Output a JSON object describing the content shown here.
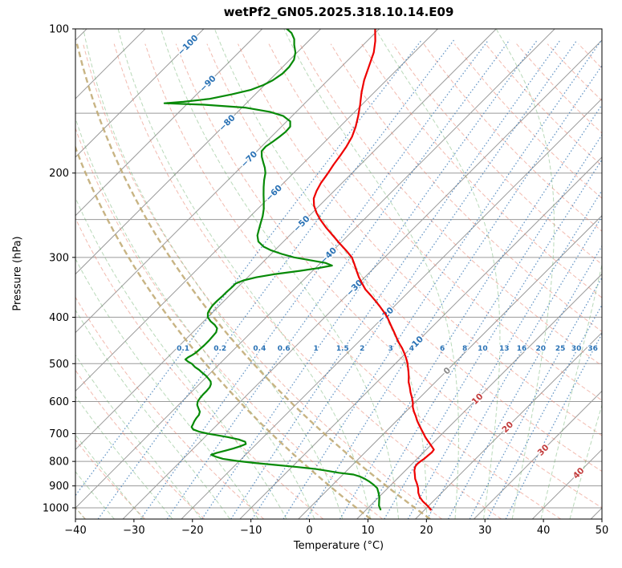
{
  "title": "wetPf2_GN05.2025.318.10.14.E09",
  "chart_data": {
    "type": "line",
    "chart_kind": "skew-t-log-p-sounding",
    "xlabel": "Temperature (°C)",
    "ylabel": "Pressure (hPa)",
    "xlim": [
      -40,
      50
    ],
    "pressure_range": [
      100,
      1000
    ],
    "x_ticks": [
      -40,
      -30,
      -20,
      -10,
      0,
      10,
      20,
      30,
      40,
      50
    ],
    "y_ticks": [
      100,
      200,
      300,
      400,
      500,
      600,
      700,
      800,
      900,
      1000
    ],
    "pressure_gridlines": [
      100,
      150,
      200,
      250,
      300,
      400,
      500,
      600,
      700,
      800,
      900,
      1000
    ],
    "isotherms": {
      "min": -120,
      "max": 50,
      "step": 10
    },
    "dry_adiabats": {
      "min": -40,
      "max": 210,
      "step": 10
    },
    "moist_adiabats": {
      "min": -40,
      "max": 45,
      "step": 5
    },
    "tan_adiabats": [
      8,
      18
    ],
    "mixing_ratios": [
      0.1,
      0.2,
      0.4,
      0.6,
      1,
      1.5,
      2,
      3,
      4,
      6,
      8,
      10,
      13,
      16,
      20,
      25,
      30,
      36
    ],
    "mixing_ratio_label_pressure": 470,
    "isotherm_labels": [
      {
        "v": -100,
        "p": 108
      },
      {
        "v": -90,
        "p": 130
      },
      {
        "v": -80,
        "p": 157
      },
      {
        "v": -70,
        "p": 187
      },
      {
        "v": -60,
        "p": 220
      },
      {
        "v": -50,
        "p": 255
      },
      {
        "v": -40,
        "p": 297
      },
      {
        "v": -30,
        "p": 347
      },
      {
        "v": -20,
        "p": 396
      },
      {
        "v": -10,
        "p": 455
      },
      {
        "v": 0,
        "p": 517
      },
      {
        "v": 10,
        "p": 592
      },
      {
        "v": 20,
        "p": 678
      },
      {
        "v": 30,
        "p": 757
      },
      {
        "v": 40,
        "p": 846
      }
    ],
    "colors": {
      "grid": "#9a9a9a",
      "isotherm": "#9a9a9a",
      "dry_adiabat": "rgba(231,130,110,0.55)",
      "moist_adiabat": "rgba(100,170,100,0.45)",
      "mixing_ratio": "rgba(49,115,179,0.75)",
      "tan_adiabat": "rgba(190,167,110,0.85)",
      "label_cold": "#2a72b5",
      "label_zero": "#8a8a8a",
      "label_warm": "#c23b3b",
      "mixing_label": "#2a72b5",
      "axis": "#000000"
    },
    "series": [
      {
        "name": "temperature",
        "color": "#ee0000",
        "points": [
          [
            1008,
            21.0
          ],
          [
            990,
            19.8
          ],
          [
            970,
            18.3
          ],
          [
            950,
            17.0
          ],
          [
            930,
            16.0
          ],
          [
            910,
            15.2
          ],
          [
            890,
            14.2
          ],
          [
            870,
            13.1
          ],
          [
            850,
            12.2
          ],
          [
            835,
            11.5
          ],
          [
            820,
            11.0
          ],
          [
            810,
            10.9
          ],
          [
            800,
            11.0
          ],
          [
            790,
            11.2
          ],
          [
            778,
            11.3
          ],
          [
            766,
            11.4
          ],
          [
            756,
            11.3
          ],
          [
            746,
            10.5
          ],
          [
            736,
            9.7
          ],
          [
            724,
            8.7
          ],
          [
            712,
            7.7
          ],
          [
            700,
            6.8
          ],
          [
            686,
            5.7
          ],
          [
            672,
            4.6
          ],
          [
            658,
            3.5
          ],
          [
            644,
            2.5
          ],
          [
            630,
            1.4
          ],
          [
            616,
            0.4
          ],
          [
            602,
            -0.4
          ],
          [
            588,
            -1.4
          ],
          [
            574,
            -2.5
          ],
          [
            560,
            -3.5
          ],
          [
            546,
            -4.6
          ],
          [
            532,
            -5.5
          ],
          [
            518,
            -6.5
          ],
          [
            504,
            -7.6
          ],
          [
            500,
            -7.9
          ],
          [
            488,
            -9.0
          ],
          [
            476,
            -10.2
          ],
          [
            464,
            -11.5
          ],
          [
            452,
            -13.0
          ],
          [
            440,
            -14.4
          ],
          [
            428,
            -15.8
          ],
          [
            416,
            -17.3
          ],
          [
            404,
            -18.8
          ],
          [
            400,
            -19.3
          ],
          [
            390,
            -20.8
          ],
          [
            380,
            -22.4
          ],
          [
            370,
            -24.1
          ],
          [
            360,
            -25.9
          ],
          [
            350,
            -27.8
          ],
          [
            340,
            -29.4
          ],
          [
            330,
            -31.0
          ],
          [
            320,
            -32.5
          ],
          [
            310,
            -34.0
          ],
          [
            300,
            -35.6
          ],
          [
            290,
            -37.8
          ],
          [
            280,
            -40.2
          ],
          [
            270,
            -42.6
          ],
          [
            260,
            -45.1
          ],
          [
            250,
            -47.5
          ],
          [
            242,
            -49.3
          ],
          [
            234,
            -50.9
          ],
          [
            226,
            -52.2
          ],
          [
            218,
            -53.0
          ],
          [
            210,
            -53.6
          ],
          [
            202,
            -54.0
          ],
          [
            200,
            -54.1
          ],
          [
            192,
            -54.6
          ],
          [
            184,
            -55.0
          ],
          [
            176,
            -55.5
          ],
          [
            168,
            -56.2
          ],
          [
            160,
            -57.3
          ],
          [
            152,
            -58.7
          ],
          [
            144,
            -60.3
          ],
          [
            136,
            -62.1
          ],
          [
            128,
            -63.8
          ],
          [
            120,
            -65.3
          ],
          [
            112,
            -66.9
          ],
          [
            106,
            -68.6
          ],
          [
            100,
            -70.7
          ]
        ]
      },
      {
        "name": "dewpoint",
        "color": "#078a07",
        "points": [
          [
            1008,
            12.4
          ],
          [
            990,
            11.5
          ],
          [
            970,
            10.8
          ],
          [
            950,
            10.1
          ],
          [
            930,
            9.2
          ],
          [
            910,
            8.2
          ],
          [
            895,
            7.0
          ],
          [
            880,
            5.6
          ],
          [
            870,
            4.5
          ],
          [
            860,
            3.2
          ],
          [
            852,
            1.8
          ],
          [
            845,
            -1.0
          ],
          [
            838,
            -3.0
          ],
          [
            830,
            -5.5
          ],
          [
            822,
            -9.0
          ],
          [
            814,
            -13.0
          ],
          [
            806,
            -17.0
          ],
          [
            798,
            -20.5
          ],
          [
            790,
            -23.2
          ],
          [
            782,
            -24.8
          ],
          [
            775,
            -25.9
          ],
          [
            768,
            -25.3
          ],
          [
            760,
            -24.2
          ],
          [
            752,
            -23.2
          ],
          [
            744,
            -22.4
          ],
          [
            736,
            -21.8
          ],
          [
            728,
            -22.3
          ],
          [
            720,
            -23.8
          ],
          [
            712,
            -26.0
          ],
          [
            705,
            -28.3
          ],
          [
            700,
            -30.1
          ],
          [
            693,
            -32.0
          ],
          [
            686,
            -33.3
          ],
          [
            678,
            -34.0
          ],
          [
            670,
            -34.2
          ],
          [
            660,
            -34.5
          ],
          [
            650,
            -34.7
          ],
          [
            640,
            -34.8
          ],
          [
            630,
            -35.2
          ],
          [
            620,
            -36.0
          ],
          [
            610,
            -36.8
          ],
          [
            600,
            -37.3
          ],
          [
            590,
            -37.5
          ],
          [
            580,
            -37.6
          ],
          [
            570,
            -37.6
          ],
          [
            560,
            -37.7
          ],
          [
            552,
            -38.0
          ],
          [
            545,
            -38.5
          ],
          [
            538,
            -39.3
          ],
          [
            530,
            -40.3
          ],
          [
            522,
            -41.5
          ],
          [
            515,
            -42.5
          ],
          [
            508,
            -43.7
          ],
          [
            500,
            -44.8
          ],
          [
            495,
            -45.8
          ],
          [
            490,
            -46.6
          ],
          [
            485,
            -46.5
          ],
          [
            480,
            -46.2
          ],
          [
            475,
            -46.0
          ],
          [
            468,
            -45.9
          ],
          [
            458,
            -45.8
          ],
          [
            448,
            -45.8
          ],
          [
            438,
            -45.9
          ],
          [
            430,
            -46.0
          ],
          [
            422,
            -46.5
          ],
          [
            415,
            -47.5
          ],
          [
            408,
            -48.8
          ],
          [
            400,
            -50.0
          ],
          [
            392,
            -50.7
          ],
          [
            385,
            -51.0
          ],
          [
            378,
            -51.2
          ],
          [
            370,
            -51.2
          ],
          [
            362,
            -51.1
          ],
          [
            354,
            -51.1
          ],
          [
            346,
            -51.0
          ],
          [
            340,
            -51.0
          ],
          [
            335,
            -50.2
          ],
          [
            330,
            -48.5
          ],
          [
            325,
            -45.8
          ],
          [
            320,
            -42.2
          ],
          [
            316,
            -39.6
          ],
          [
            312,
            -37.6
          ],
          [
            308,
            -39.2
          ],
          [
            304,
            -42.3
          ],
          [
            300,
            -45.5
          ],
          [
            295,
            -48.2
          ],
          [
            290,
            -50.6
          ],
          [
            285,
            -52.5
          ],
          [
            278,
            -54.3
          ],
          [
            270,
            -55.5
          ],
          [
            262,
            -56.3
          ],
          [
            254,
            -57.1
          ],
          [
            246,
            -57.9
          ],
          [
            238,
            -58.9
          ],
          [
            230,
            -60.1
          ],
          [
            222,
            -61.4
          ],
          [
            214,
            -62.7
          ],
          [
            207,
            -63.8
          ],
          [
            200,
            -64.8
          ],
          [
            195,
            -65.8
          ],
          [
            190,
            -67.0
          ],
          [
            185,
            -68.2
          ],
          [
            180,
            -69.2
          ],
          [
            176,
            -69.3
          ],
          [
            172,
            -68.9
          ],
          [
            168,
            -68.6
          ],
          [
            164,
            -68.4
          ],
          [
            160,
            -68.5
          ],
          [
            156,
            -69.4
          ],
          [
            152,
            -71.5
          ],
          [
            149,
            -74.5
          ],
          [
            146,
            -79.5
          ],
          [
            144,
            -87.0
          ],
          [
            143,
            -94.0
          ],
          [
            142,
            -91.0
          ],
          [
            140,
            -87.0
          ],
          [
            137,
            -84.0
          ],
          [
            134,
            -81.5
          ],
          [
            131,
            -80.2
          ],
          [
            128,
            -79.4
          ],
          [
            124,
            -78.9
          ],
          [
            120,
            -78.9
          ],
          [
            116,
            -79.3
          ],
          [
            112,
            -80.3
          ],
          [
            108,
            -81.8
          ],
          [
            105,
            -82.8
          ],
          [
            102,
            -84.3
          ],
          [
            100,
            -85.8
          ]
        ]
      }
    ]
  }
}
